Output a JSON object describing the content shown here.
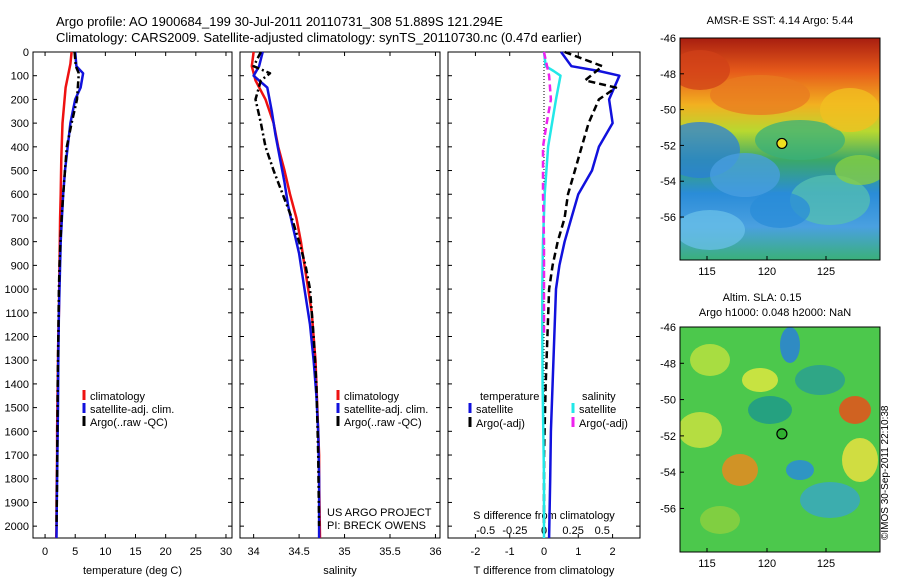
{
  "header": {
    "title_line1": "Argo profile: AO 1900684_199 30-Jul-2011 20110731_308 51.889S 121.294E",
    "title_line2": "Climatology: CARS2009. Satellite-adjusted climatology: synTS_20110730.nc (0.47d earlier)"
  },
  "depth_ticks": [
    0,
    100,
    200,
    300,
    400,
    500,
    600,
    700,
    800,
    900,
    1000,
    1100,
    1200,
    1300,
    1400,
    1500,
    1600,
    1700,
    1800,
    1900,
    2000
  ],
  "colors": {
    "red": "#ee1111",
    "blue": "#1111dd",
    "black": "#000000",
    "magenta": "#ee22ee",
    "cyan": "#22e8e8"
  },
  "chart_data": [
    {
      "type": "line",
      "xlabel": "temperature (deg C)",
      "xlim": [
        -2,
        31
      ],
      "ylim": [
        0,
        2050
      ],
      "x_ticks": [
        0,
        5,
        10,
        15,
        20,
        25,
        30
      ],
      "legend": {
        "placement": "lower-center",
        "items": [
          "climatology",
          "satellite-adj. clim.",
          "Argo(..raw -QC)"
        ]
      },
      "series": [
        {
          "name": "climatology",
          "color": "red",
          "style": "solid",
          "x": [
            4.4,
            4.2,
            3.4,
            2.9,
            2.7,
            2.6,
            2.5,
            2.45,
            2.4,
            2.35,
            2.3,
            2.2,
            2.15,
            2.1,
            2.05,
            2.0,
            2.0,
            1.95,
            1.9,
            1.9,
            1.85
          ],
          "depth": [
            0,
            50,
            150,
            300,
            450,
            600,
            700,
            800,
            900,
            1000,
            1100,
            1200,
            1300,
            1400,
            1500,
            1600,
            1700,
            1800,
            1900,
            2000,
            2050
          ]
        },
        {
          "name": "satellite-adj. clim.",
          "color": "blue",
          "style": "solid",
          "x": [
            5.0,
            5.2,
            6.3,
            5.9,
            5.0,
            4.2,
            3.3,
            3.0,
            2.8,
            2.6,
            2.5,
            2.4,
            2.3,
            2.2,
            2.15,
            2.1,
            2.05,
            2.0,
            1.95,
            1.9
          ],
          "depth": [
            0,
            60,
            90,
            150,
            200,
            300,
            500,
            600,
            700,
            800,
            900,
            1000,
            1100,
            1300,
            1500,
            1600,
            1700,
            1800,
            1900,
            2050
          ]
        },
        {
          "name": "Argo(..raw -QC)",
          "color": "black",
          "style": "dashdot",
          "x": [
            4.9,
            5.1,
            5.6,
            5.3,
            4.4,
            3.6,
            3.3,
            3.0,
            2.75,
            2.55,
            2.4,
            2.3,
            2.2,
            2.1,
            2.05,
            2.0,
            1.95,
            1.9
          ],
          "depth": [
            0,
            60,
            90,
            200,
            300,
            400,
            500,
            600,
            700,
            800,
            900,
            1000,
            1200,
            1400,
            1600,
            1800,
            1900,
            2000
          ]
        }
      ]
    },
    {
      "type": "line",
      "xlabel": "salinity",
      "xlim": [
        33.85,
        36.05
      ],
      "ylim": [
        0,
        2050
      ],
      "x_ticks": [
        34,
        34.5,
        35,
        35.5,
        36
      ],
      "legend": {
        "placement": "lower-right",
        "items": [
          "climatology",
          "satellite-adj. clim.",
          "Argo(..raw -QC)"
        ]
      },
      "annotation": [
        "US ARGO PROJECT",
        "PI: BRECK OWENS"
      ],
      "series": [
        {
          "name": "climatology",
          "color": "red",
          "style": "solid",
          "x": [
            34.0,
            33.98,
            34.02,
            34.13,
            34.22,
            34.27,
            34.34,
            34.4,
            34.47,
            34.52,
            34.56,
            34.6,
            34.64,
            34.66,
            34.68,
            34.69,
            34.7,
            34.71,
            34.72,
            34.72,
            34.73
          ],
          "depth": [
            0,
            60,
            120,
            200,
            300,
            400,
            500,
            600,
            700,
            800,
            900,
            1000,
            1100,
            1200,
            1300,
            1400,
            1500,
            1600,
            1700,
            1800,
            2050
          ]
        },
        {
          "name": "satellite-adj. clim.",
          "color": "blue",
          "style": "solid",
          "x": [
            34.1,
            34.06,
            34.0,
            34.15,
            34.2,
            34.24,
            34.29,
            34.34,
            34.38,
            34.44,
            34.5,
            34.56,
            34.62,
            34.66,
            34.69,
            34.71,
            34.72,
            34.72
          ],
          "depth": [
            0,
            60,
            100,
            150,
            250,
            350,
            450,
            550,
            650,
            750,
            850,
            1000,
            1150,
            1300,
            1450,
            1600,
            1800,
            2050
          ]
        },
        {
          "name": "Argo(..raw -QC)",
          "color": "black",
          "style": "dashdot",
          "x": [
            34.08,
            34.0,
            34.18,
            34.08,
            34.02,
            34.08,
            34.13,
            34.22,
            34.32,
            34.42,
            34.5,
            34.57,
            34.62,
            34.66,
            34.69,
            34.71,
            34.72
          ],
          "depth": [
            0,
            60,
            90,
            120,
            200,
            300,
            400,
            500,
            600,
            700,
            800,
            900,
            1000,
            1200,
            1400,
            1700,
            2000
          ]
        }
      ]
    },
    {
      "type": "line",
      "xlabel": "T difference from climatology",
      "xlabel_top": "S difference from climatology",
      "xlim": [
        -2.8,
        2.8
      ],
      "ylim": [
        0,
        2050
      ],
      "x_ticks": [
        -2,
        -1,
        0,
        1,
        2
      ],
      "x_ticks_top": [
        "-0.5",
        "-0.25",
        "0",
        "0.25",
        "0.5"
      ],
      "legend": {
        "placement": "lower-center",
        "headers": [
          "temperature",
          "salinity"
        ],
        "items": [
          "satellite",
          "Argo(-adj)",
          "satellite",
          "Argo(-adj)"
        ]
      },
      "series": [
        {
          "name": "temperature satellite",
          "color": "blue",
          "style": "solid",
          "x": [
            0.5,
            0.8,
            1.6,
            2.2,
            1.9,
            2.0,
            1.6,
            1.4,
            1.0,
            0.8,
            0.6,
            0.45,
            0.35,
            0.3,
            0.25,
            0.2,
            0.18,
            0.15
          ],
          "depth": [
            0,
            60,
            80,
            100,
            200,
            300,
            400,
            500,
            600,
            700,
            800,
            900,
            1000,
            1200,
            1400,
            1600,
            1800,
            2050
          ]
        },
        {
          "name": "temperature Argo(-adj)",
          "color": "black",
          "style": "dashed",
          "x": [
            0.6,
            1.7,
            1.2,
            2.1,
            1.6,
            1.3,
            1.1,
            0.9,
            0.7,
            0.6,
            0.4,
            0.25,
            0.15,
            0.1,
            0.05,
            0.0,
            0.0
          ],
          "depth": [
            0,
            60,
            120,
            150,
            200,
            300,
            400,
            500,
            600,
            700,
            800,
            900,
            1000,
            1200,
            1400,
            1700,
            2050
          ]
        },
        {
          "name": "salinity satellite",
          "color": "cyan",
          "style": "solid",
          "x": [
            0.0,
            0.05,
            0.28,
            0.48,
            0.35,
            0.12,
            0.02,
            -0.03,
            -0.05,
            -0.05,
            -0.04,
            -0.02,
            0.0,
            0.0,
            0.0
          ],
          "depth": [
            0,
            60,
            80,
            100,
            200,
            400,
            600,
            800,
            1000,
            1200,
            1400,
            1600,
            1800,
            1900,
            2050
          ]
        },
        {
          "name": "salinity Argo(-adj)",
          "color": "magenta",
          "style": "dashed",
          "x": [
            0.0,
            0.15,
            0.2,
            0.08,
            -0.03,
            -0.03,
            0.0,
            0.0,
            0.0
          ],
          "depth": [
            0,
            100,
            200,
            300,
            400,
            600,
            800,
            1000,
            1200
          ]
        }
      ]
    }
  ],
  "maps": {
    "sst_title": "AMSR-E SST: 4.14 Argo: 5.44",
    "sla_title_1": "Altim. SLA: 0.15",
    "sla_title_2": "Argo h1000: 0.048 h2000: NaN",
    "lat_ticks": [
      "-46",
      "-48",
      "-50",
      "-52",
      "-54",
      "-56"
    ],
    "lon_ticks": [
      "115",
      "120",
      "125"
    ],
    "marker_lat": -51.889,
    "marker_lon": 121.294
  },
  "stamp": "©IMOS 30-Sep-2011 22:10:38"
}
